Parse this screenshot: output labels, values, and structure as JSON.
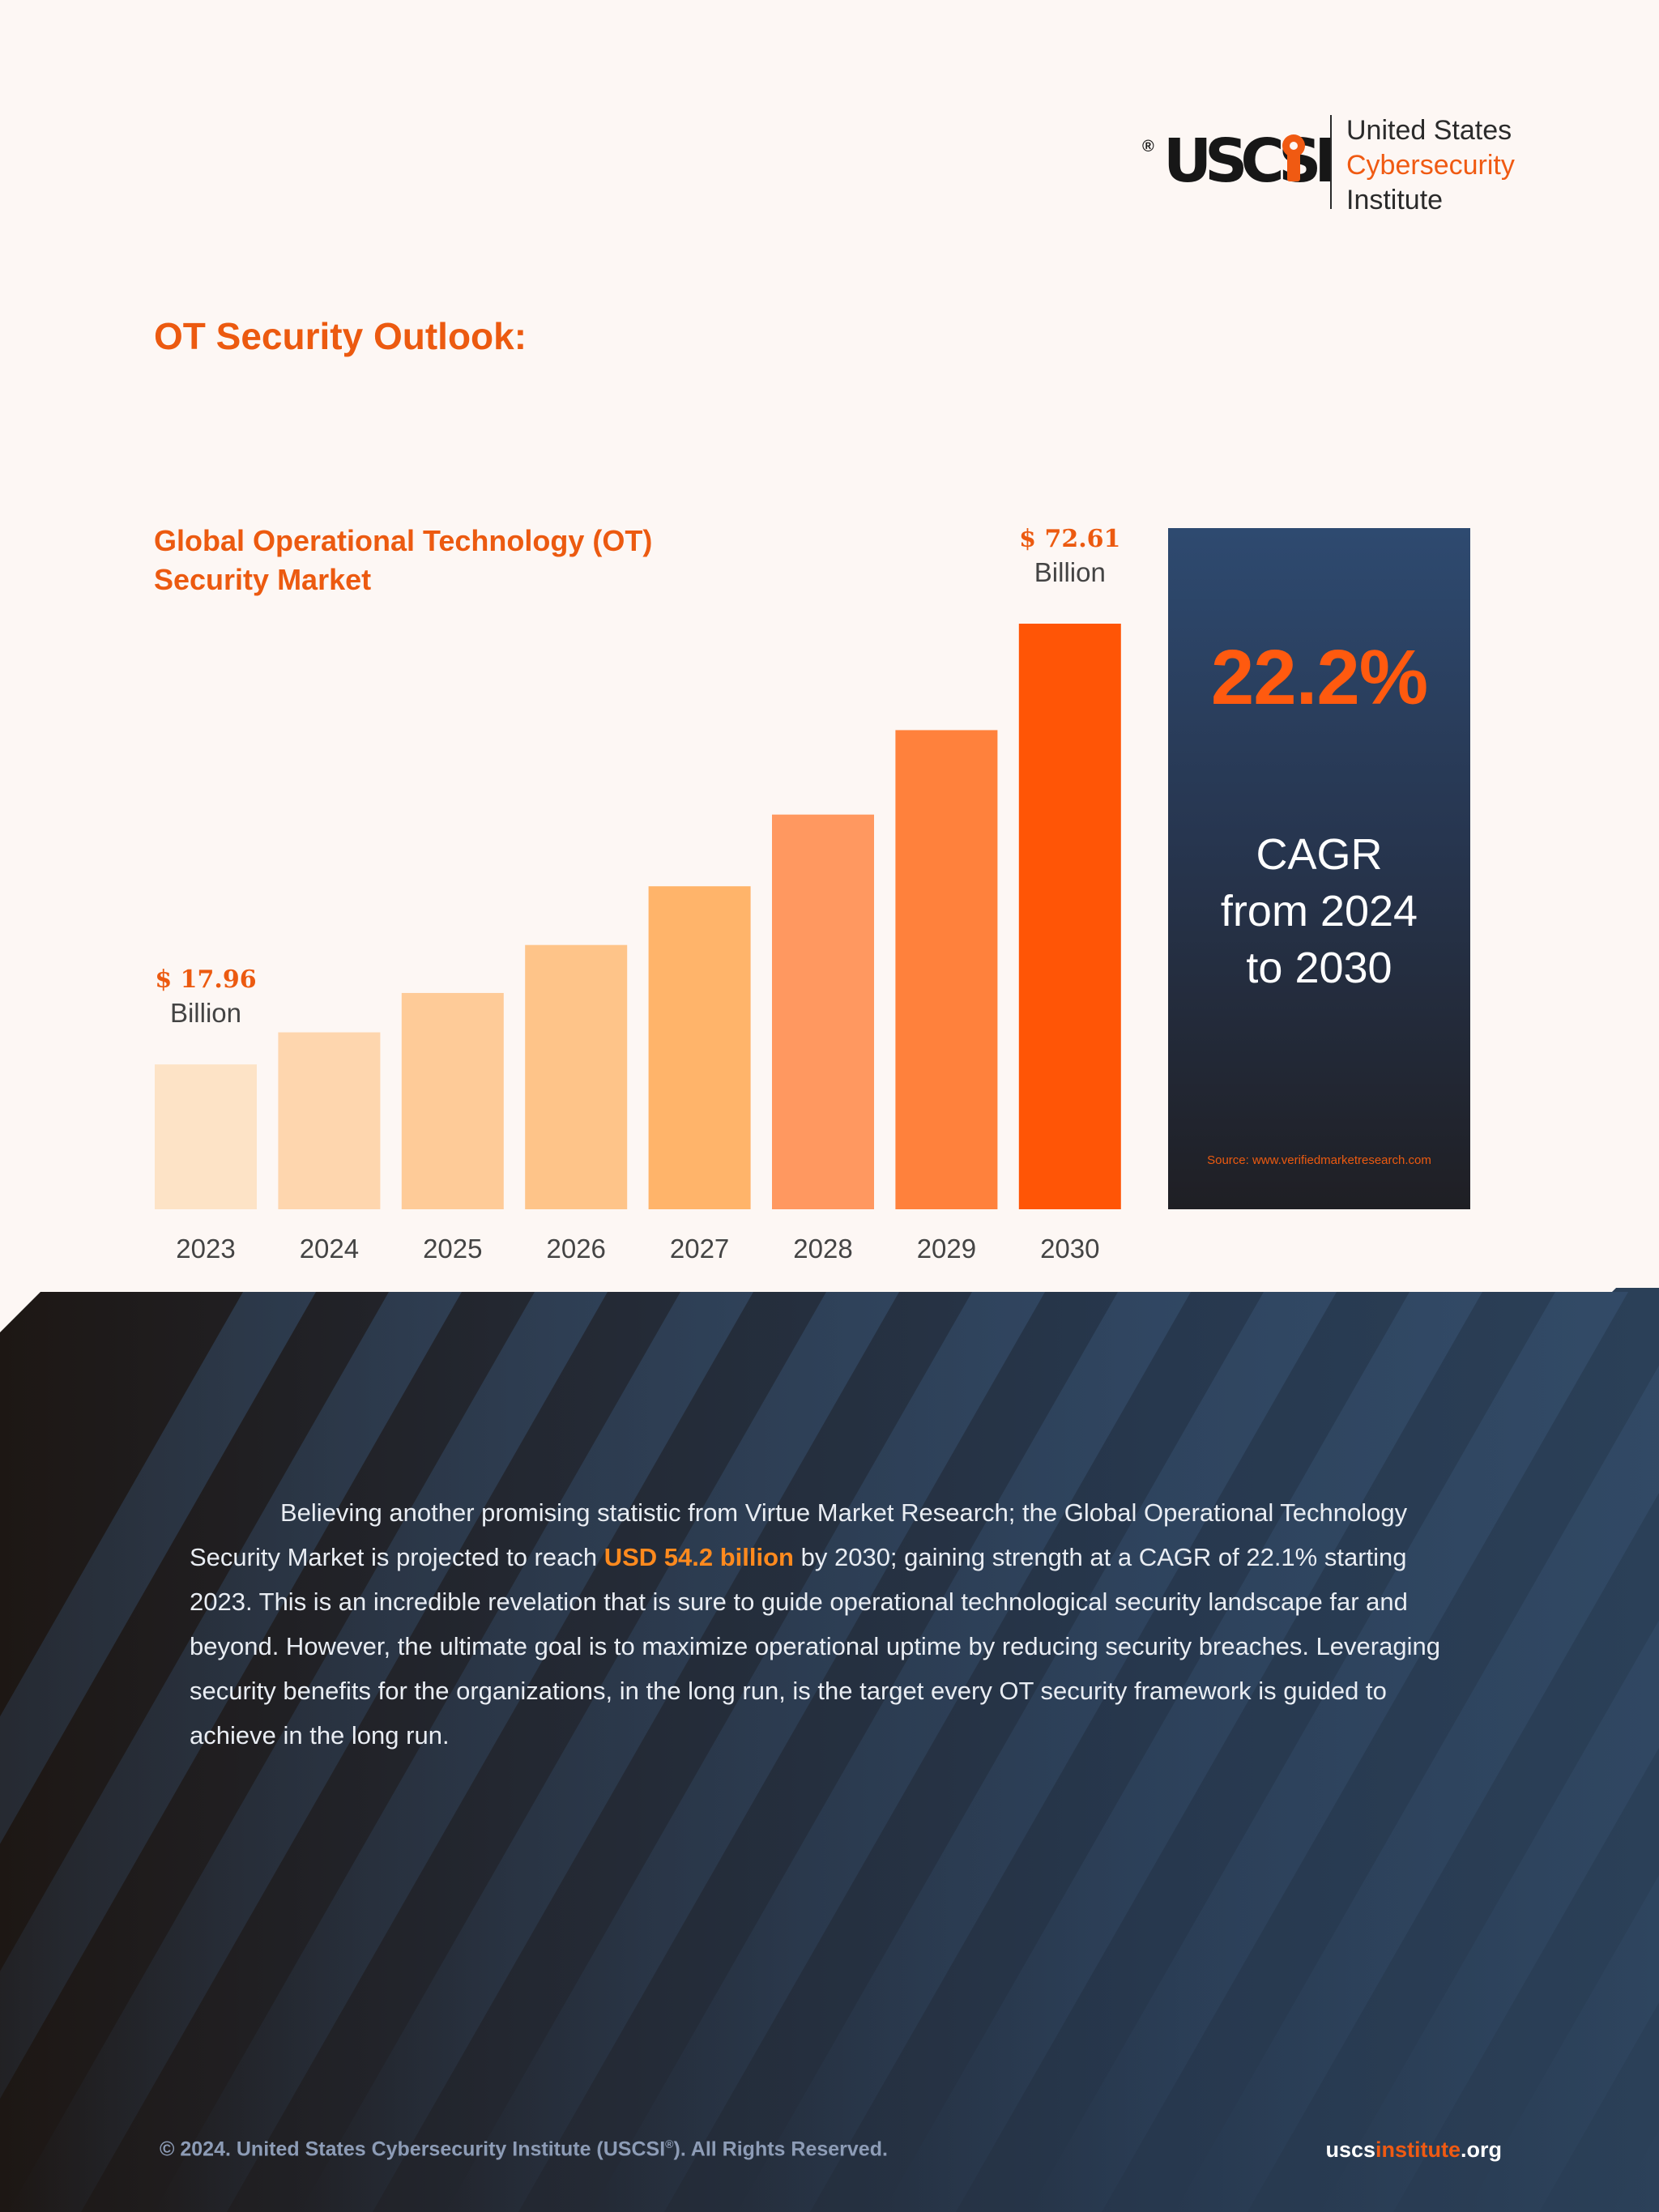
{
  "brand": {
    "logo_text": "USCSI",
    "reg_mark": "®",
    "name_line1": "United States",
    "name_line2": "Cybersecurity",
    "name_line3": "Institute",
    "accent_color": "#ec5a10"
  },
  "section_title": "OT Security Outlook:",
  "chart_data": {
    "type": "bar",
    "title_line1": "Global Operational Technology (OT)",
    "title_line2": "Security Market",
    "categories": [
      "2023",
      "2024",
      "2025",
      "2026",
      "2027",
      "2028",
      "2029",
      "2030"
    ],
    "values": [
      17.96,
      21.94,
      26.82,
      32.77,
      40.05,
      48.94,
      59.41,
      72.61
    ],
    "unit": "Billion",
    "labeled_points": [
      {
        "category": "2023",
        "value_label": "$ 17.96",
        "unit_label": "Billion"
      },
      {
        "category": "2030",
        "value_label": "$ 72.61",
        "unit_label": "Billion"
      }
    ],
    "bar_colors": [
      "#fde3c6",
      "#fed6ae",
      "#fecb98",
      "#fec489",
      "#ffb46a",
      "#ff9860",
      "#ff813c",
      "#ff5506"
    ],
    "ylim": [
      0,
      72.61
    ],
    "grid": false,
    "legend": "none"
  },
  "cagr": {
    "value": "22.2%",
    "text": "CAGR\nfrom 2024\nto 2030",
    "source": "Source: www.verifiedmarketresearch.com"
  },
  "paragraph": {
    "part1": "Believing another promising statistic from Virtue Market Research; the Global Operational Technology Security Market is projected to reach ",
    "highlight": "USD 54.2 billion",
    "part2": " by 2030; gaining strength at a CAGR of 22.1% starting 2023. This is an incredible revelation that is sure to guide operational technological security landscape far and beyond. However, the ultimate goal is to maximize operational uptime by reducing security breaches. Leveraging security benefits for the organizations, in the long run, is the target every OT security framework is guided to achieve in the long run."
  },
  "footer": {
    "copyright_pre": "© 2024. United States Cybersecurity Institute (USCSI",
    "copyright_sup": "®",
    "copyright_post": "). All Rights Reserved.",
    "url_part1": "uscs",
    "url_part2": "institute",
    "url_part3": ".org"
  }
}
